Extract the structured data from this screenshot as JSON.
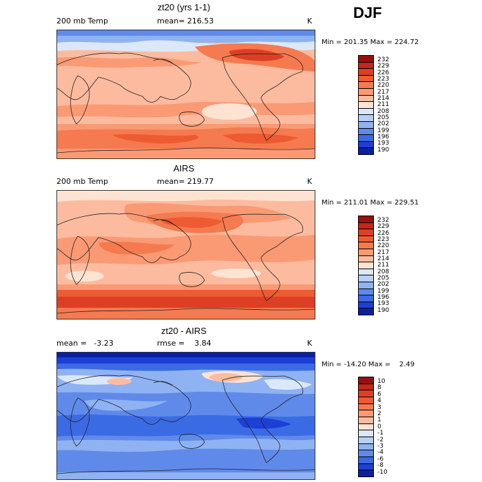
{
  "season": "DJF",
  "chart_data": [
    {
      "type": "heatmap",
      "title": "zt20 (yrs 1-1)",
      "variable": "200 mb Temp",
      "stat_text": "mean= 216.53",
      "units": "K",
      "min_text": "Min = 201.35 Max = 224.72",
      "min": 201.35,
      "max": 224.72,
      "colorbar_levels": [
        "232",
        "229",
        "226",
        "223",
        "220",
        "217",
        "214",
        "211",
        "208",
        "205",
        "202",
        "199",
        "196",
        "193",
        "190"
      ],
      "colorbar_colors": [
        "#9b0f0f",
        "#c4271b",
        "#dd3f24",
        "#ee5a31",
        "#f57a4f",
        "#fa9a74",
        "#fcbb9f",
        "#fee3d3",
        "#dbe8fa",
        "#b8cff7",
        "#8fb2f3",
        "#5f8aea",
        "#3b6ae5",
        "#1c40d6",
        "#0b1fa6"
      ]
    },
    {
      "type": "heatmap",
      "title": "AIRS",
      "variable": "200 mb Temp",
      "stat_text": "mean= 219.77",
      "units": "K",
      "min_text": "Min = 211.01 Max = 229.51",
      "min": 211.01,
      "max": 229.51,
      "colorbar_levels": [
        "232",
        "229",
        "226",
        "223",
        "220",
        "217",
        "214",
        "211",
        "208",
        "205",
        "202",
        "199",
        "196",
        "193",
        "190"
      ],
      "colorbar_colors": [
        "#9b0f0f",
        "#c4271b",
        "#dd3f24",
        "#ee5a31",
        "#f57a4f",
        "#fa9a74",
        "#fcbb9f",
        "#fee3d3",
        "#dbe8fa",
        "#b8cff7",
        "#8fb2f3",
        "#5f8aea",
        "#3b6ae5",
        "#1c40d6",
        "#0b1fa6"
      ]
    },
    {
      "type": "heatmap",
      "title": "zt20 - AIRS",
      "stat_text": "mean =   -3.23",
      "rmse_text": "rmse =    3.84",
      "units": "K",
      "min_text": "Min = -14.20 Max =    2.49",
      "min": -14.2,
      "max": 2.49,
      "colorbar_levels": [
        "10",
        "8",
        "6",
        "4",
        "3",
        "2",
        "1",
        "0",
        "-1",
        "-2",
        "-3",
        "-4",
        "-6",
        "-8",
        "-10"
      ],
      "colorbar_colors": [
        "#9b0f0f",
        "#c4271b",
        "#dd3f24",
        "#ee5a31",
        "#f57a4f",
        "#fa9a74",
        "#fcbb9f",
        "#fee3d3",
        "#dbe8fa",
        "#b8cff7",
        "#8fb2f3",
        "#5f8aea",
        "#3b6ae5",
        "#1c40d6",
        "#0b1fa6"
      ]
    }
  ]
}
